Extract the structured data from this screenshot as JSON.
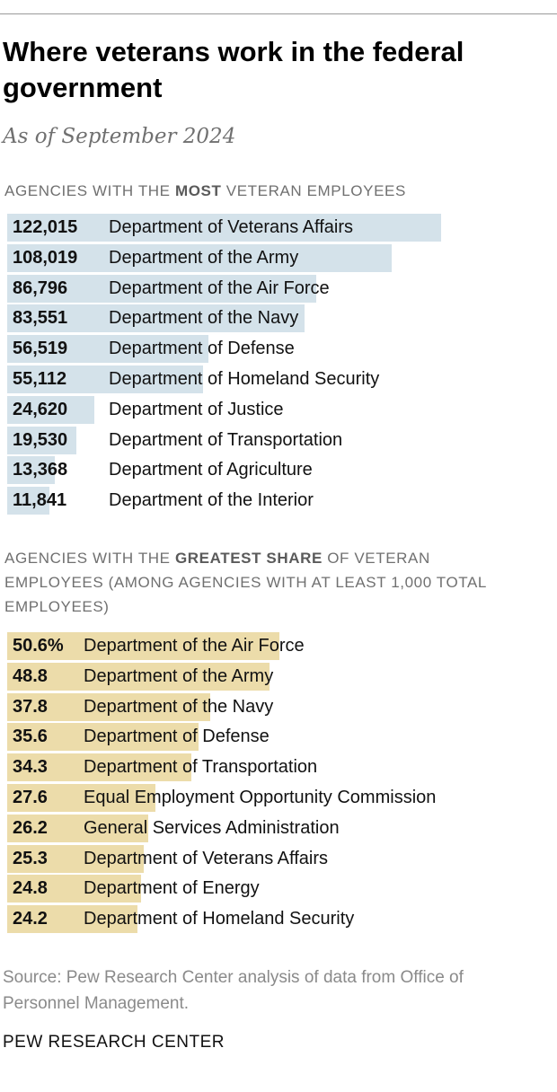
{
  "title": "Where veterans work in the federal government",
  "subtitle": "As of September 2024",
  "section1": {
    "prefix": "AGENCIES WITH THE ",
    "emphasis": "MOST",
    "suffix": " VETERAN EMPLOYEES"
  },
  "section2": {
    "prefix": "AGENCIES WITH THE ",
    "emphasis": "GREATEST SHARE",
    "suffix": " OF VETERAN EMPLOYEES (AMONG AGENCIES WITH AT LEAST 1,000 TOTAL EMPLOYEES)"
  },
  "source": "Source: Pew Research Center analysis of data from Office of Personnel Management.",
  "brand": "PEW RESEARCH CENTER",
  "colors": {
    "bar_count": "#d4e2ea",
    "bar_share": "#ecdcaa"
  },
  "chart_data": [
    {
      "type": "bar",
      "orientation": "horizontal",
      "title": "AGENCIES WITH THE MOST VETERAN EMPLOYEES",
      "categories": [
        "Department of Veterans Affairs",
        "Department of the Army",
        "Department of the Air Force",
        "Department of the Navy",
        "Department of Defense",
        "Department of Homeland Security",
        "Department of Justice",
        "Department of Transportation",
        "Department of Agriculture",
        "Department of the Interior"
      ],
      "values": [
        122015,
        108019,
        86796,
        83551,
        56519,
        55112,
        24620,
        19530,
        13368,
        11841
      ],
      "value_labels": [
        "122,015",
        "108,019",
        "86,796",
        "83,551",
        "56,519",
        "55,112",
        "24,620",
        "19,530",
        "13,368",
        "11,841"
      ],
      "xlim": [
        0,
        122015
      ]
    },
    {
      "type": "bar",
      "orientation": "horizontal",
      "title": "AGENCIES WITH THE GREATEST SHARE OF VETERAN EMPLOYEES (AMONG AGENCIES WITH AT LEAST 1,000 TOTAL EMPLOYEES)",
      "categories": [
        "Department of the Air Force",
        "Department of the Army",
        "Department of the Navy",
        "Department of Defense",
        "Department of Transportation",
        "Equal Employment Opportunity Commission",
        "General Services Administration",
        "Department of Veterans Affairs",
        "Department of Energy",
        "Department of Homeland Security"
      ],
      "values": [
        50.6,
        48.8,
        37.8,
        35.6,
        34.3,
        27.6,
        26.2,
        25.3,
        24.8,
        24.2
      ],
      "value_labels": [
        "50.6%",
        "48.8",
        "37.8",
        "35.6",
        "34.3",
        "27.6",
        "26.2",
        "25.3",
        "24.8",
        "24.2"
      ],
      "xlim": [
        0,
        50.6
      ]
    }
  ]
}
